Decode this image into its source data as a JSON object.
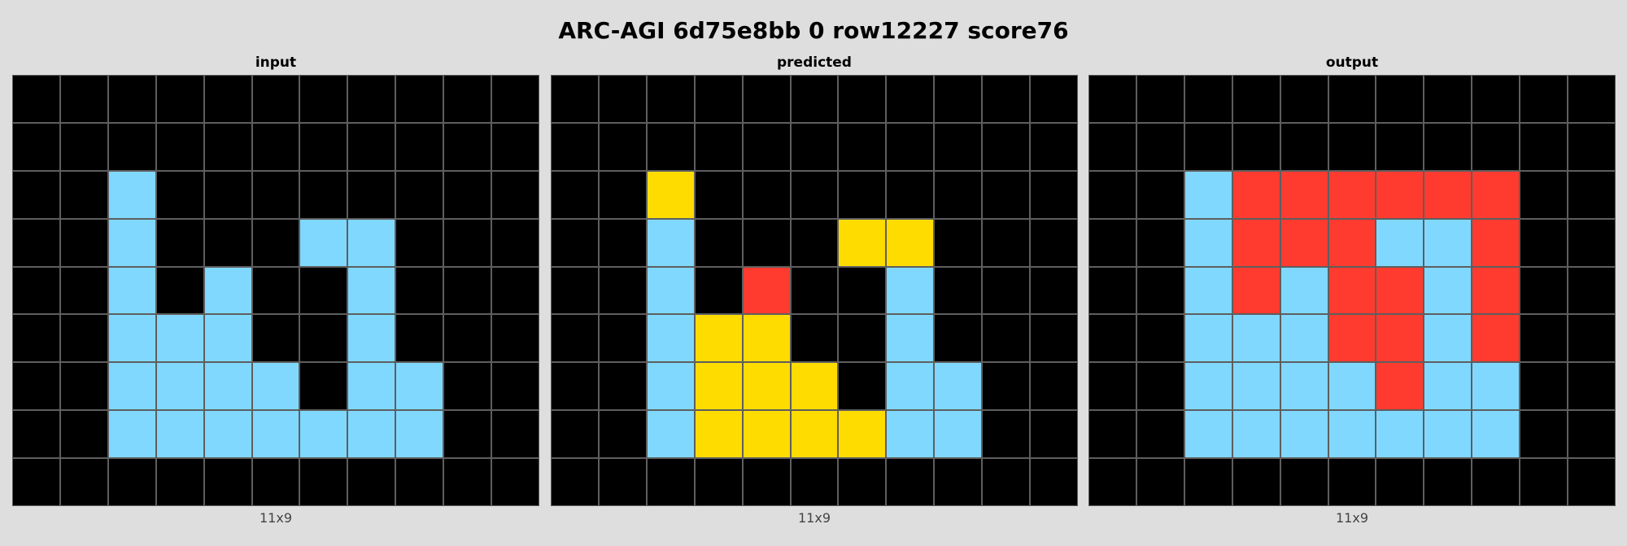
{
  "title": "ARC-AGI 6d75e8bb 0 row12227 score76",
  "palette": {
    "0": "#000000",
    "1": "#80d8ff",
    "2": "#ff3b30",
    "3": "#ffdc00"
  },
  "panels": [
    {
      "label": "input",
      "dims": "11x9",
      "grid": [
        [
          0,
          0,
          0,
          0,
          0,
          0,
          0,
          0,
          0,
          0,
          0
        ],
        [
          0,
          0,
          0,
          0,
          0,
          0,
          0,
          0,
          0,
          0,
          0
        ],
        [
          0,
          0,
          1,
          0,
          0,
          0,
          0,
          0,
          0,
          0,
          0
        ],
        [
          0,
          0,
          1,
          0,
          0,
          0,
          1,
          1,
          0,
          0,
          0
        ],
        [
          0,
          0,
          1,
          0,
          1,
          0,
          0,
          1,
          0,
          0,
          0
        ],
        [
          0,
          0,
          1,
          1,
          1,
          0,
          0,
          1,
          0,
          0,
          0
        ],
        [
          0,
          0,
          1,
          1,
          1,
          1,
          0,
          1,
          1,
          0,
          0
        ],
        [
          0,
          0,
          1,
          1,
          1,
          1,
          1,
          1,
          1,
          0,
          0
        ],
        [
          0,
          0,
          0,
          0,
          0,
          0,
          0,
          0,
          0,
          0,
          0
        ]
      ]
    },
    {
      "label": "predicted",
      "dims": "11x9",
      "grid": [
        [
          0,
          0,
          0,
          0,
          0,
          0,
          0,
          0,
          0,
          0,
          0
        ],
        [
          0,
          0,
          0,
          0,
          0,
          0,
          0,
          0,
          0,
          0,
          0
        ],
        [
          0,
          0,
          3,
          0,
          0,
          0,
          0,
          0,
          0,
          0,
          0
        ],
        [
          0,
          0,
          1,
          0,
          0,
          0,
          3,
          3,
          0,
          0,
          0
        ],
        [
          0,
          0,
          1,
          0,
          2,
          0,
          0,
          1,
          0,
          0,
          0
        ],
        [
          0,
          0,
          1,
          3,
          3,
          0,
          0,
          1,
          0,
          0,
          0
        ],
        [
          0,
          0,
          1,
          3,
          3,
          3,
          0,
          1,
          1,
          0,
          0
        ],
        [
          0,
          0,
          1,
          3,
          3,
          3,
          3,
          1,
          1,
          0,
          0
        ],
        [
          0,
          0,
          0,
          0,
          0,
          0,
          0,
          0,
          0,
          0,
          0
        ]
      ]
    },
    {
      "label": "output",
      "dims": "11x9",
      "grid": [
        [
          0,
          0,
          0,
          0,
          0,
          0,
          0,
          0,
          0,
          0,
          0
        ],
        [
          0,
          0,
          0,
          0,
          0,
          0,
          0,
          0,
          0,
          0,
          0
        ],
        [
          0,
          0,
          1,
          2,
          2,
          2,
          2,
          2,
          2,
          0,
          0
        ],
        [
          0,
          0,
          1,
          2,
          2,
          2,
          1,
          1,
          2,
          0,
          0
        ],
        [
          0,
          0,
          1,
          2,
          1,
          2,
          2,
          1,
          2,
          0,
          0
        ],
        [
          0,
          0,
          1,
          1,
          1,
          2,
          2,
          1,
          2,
          0,
          0
        ],
        [
          0,
          0,
          1,
          1,
          1,
          1,
          2,
          1,
          1,
          0,
          0
        ],
        [
          0,
          0,
          1,
          1,
          1,
          1,
          1,
          1,
          1,
          0,
          0
        ],
        [
          0,
          0,
          0,
          0,
          0,
          0,
          0,
          0,
          0,
          0,
          0
        ]
      ]
    }
  ]
}
